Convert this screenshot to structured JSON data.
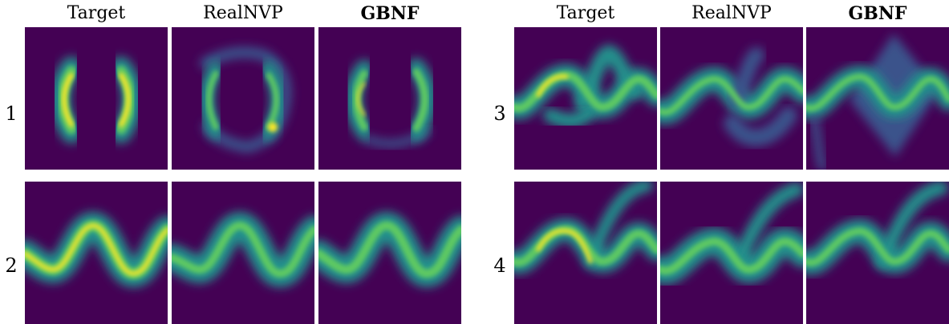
{
  "headers": {
    "left": [
      "Target",
      "RealNVP",
      "GBNF"
    ],
    "right": [
      "Target",
      "RealNVP",
      "GBNF"
    ]
  },
  "row_labels": [
    "1",
    "2",
    "3",
    "4"
  ],
  "colors": {
    "background": "#440154",
    "low": "#3b528b",
    "mid": "#21918c",
    "high": "#5ec962",
    "peak": "#fde725"
  }
}
